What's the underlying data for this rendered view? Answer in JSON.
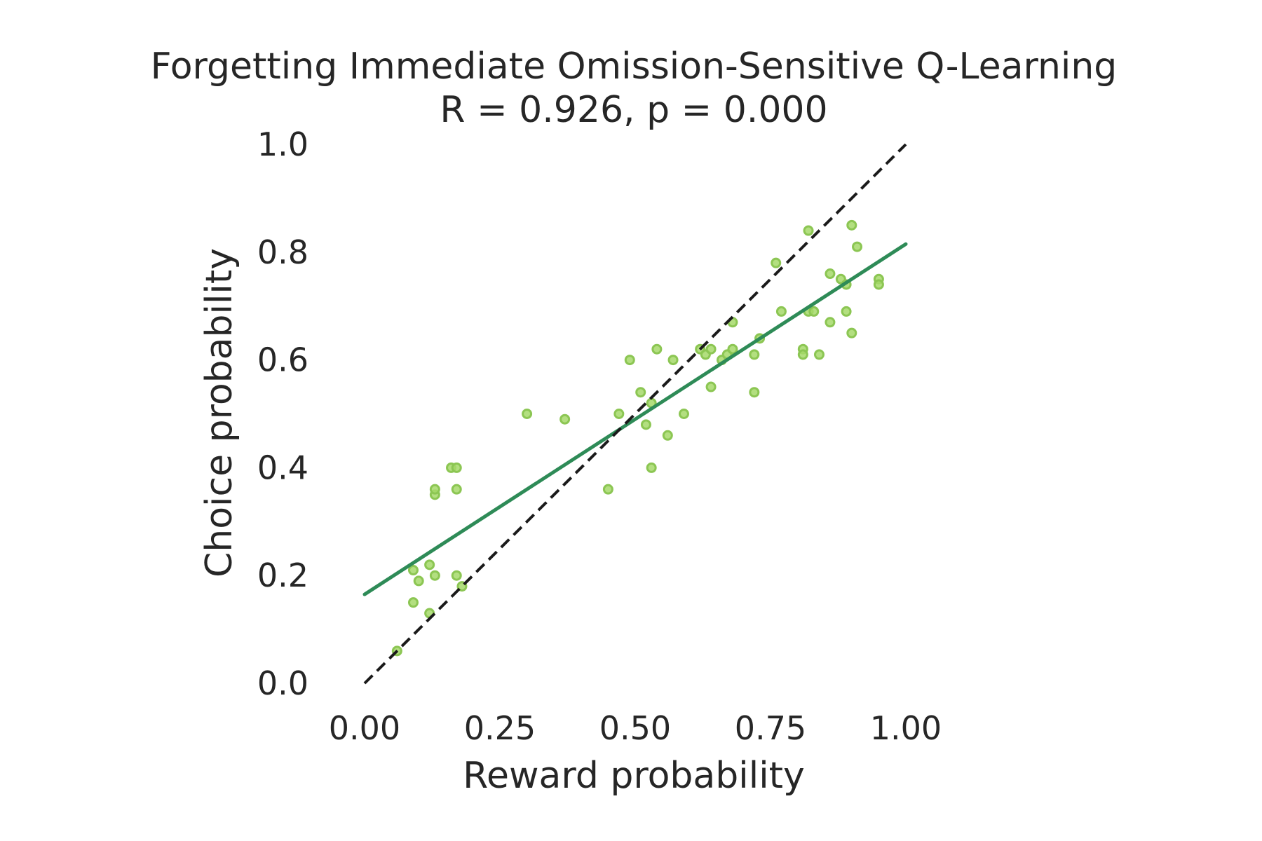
{
  "chart_data": {
    "type": "scatter",
    "title": "Forgetting Immediate Omission-Sensitive Q-Learning",
    "subtitle": "R = 0.926, p = 0.000",
    "xlabel": "Reward probability",
    "ylabel": "Choice probability",
    "xlim": [
      0.0,
      1.0
    ],
    "ylim": [
      0.0,
      1.0
    ],
    "xticks": [
      "0.00",
      "0.25",
      "0.50",
      "0.75",
      "1.00"
    ],
    "yticks": [
      "0.0",
      "0.2",
      "0.4",
      "0.6",
      "0.8",
      "1.0"
    ],
    "grid": false,
    "colors": {
      "points": "#a6d96a",
      "points_edge": "#8cc653",
      "fit_line": "#2e8b57",
      "identity_line": "#1a1a1a",
      "text": "#262626"
    },
    "series": [
      {
        "type": "scatter",
        "x": [
          0.06,
          0.09,
          0.09,
          0.1,
          0.12,
          0.12,
          0.13,
          0.13,
          0.13,
          0.16,
          0.17,
          0.17,
          0.17,
          0.18,
          0.3,
          0.37,
          0.45,
          0.47,
          0.49,
          0.51,
          0.52,
          0.53,
          0.53,
          0.54,
          0.56,
          0.57,
          0.59,
          0.62,
          0.63,
          0.64,
          0.64,
          0.66,
          0.67,
          0.68,
          0.68,
          0.72,
          0.72,
          0.73,
          0.76,
          0.77,
          0.81,
          0.81,
          0.82,
          0.82,
          0.83,
          0.84,
          0.86,
          0.86,
          0.88,
          0.89,
          0.89,
          0.9,
          0.9,
          0.91,
          0.95,
          0.95
        ],
        "y": [
          0.06,
          0.15,
          0.21,
          0.19,
          0.13,
          0.22,
          0.2,
          0.35,
          0.36,
          0.4,
          0.2,
          0.36,
          0.4,
          0.18,
          0.5,
          0.49,
          0.36,
          0.5,
          0.6,
          0.54,
          0.48,
          0.52,
          0.4,
          0.62,
          0.46,
          0.6,
          0.5,
          0.62,
          0.61,
          0.62,
          0.55,
          0.6,
          0.61,
          0.62,
          0.67,
          0.61,
          0.54,
          0.64,
          0.78,
          0.69,
          0.62,
          0.61,
          0.84,
          0.69,
          0.69,
          0.61,
          0.76,
          0.67,
          0.75,
          0.74,
          0.69,
          0.65,
          0.85,
          0.81,
          0.75,
          0.74
        ]
      },
      {
        "type": "line",
        "style": "solid",
        "x": [
          0.0,
          1.0
        ],
        "y": [
          0.165,
          0.815
        ]
      },
      {
        "type": "line",
        "style": "dashed",
        "x": [
          0.0,
          1.0
        ],
        "y": [
          0.0,
          1.0
        ]
      }
    ]
  }
}
